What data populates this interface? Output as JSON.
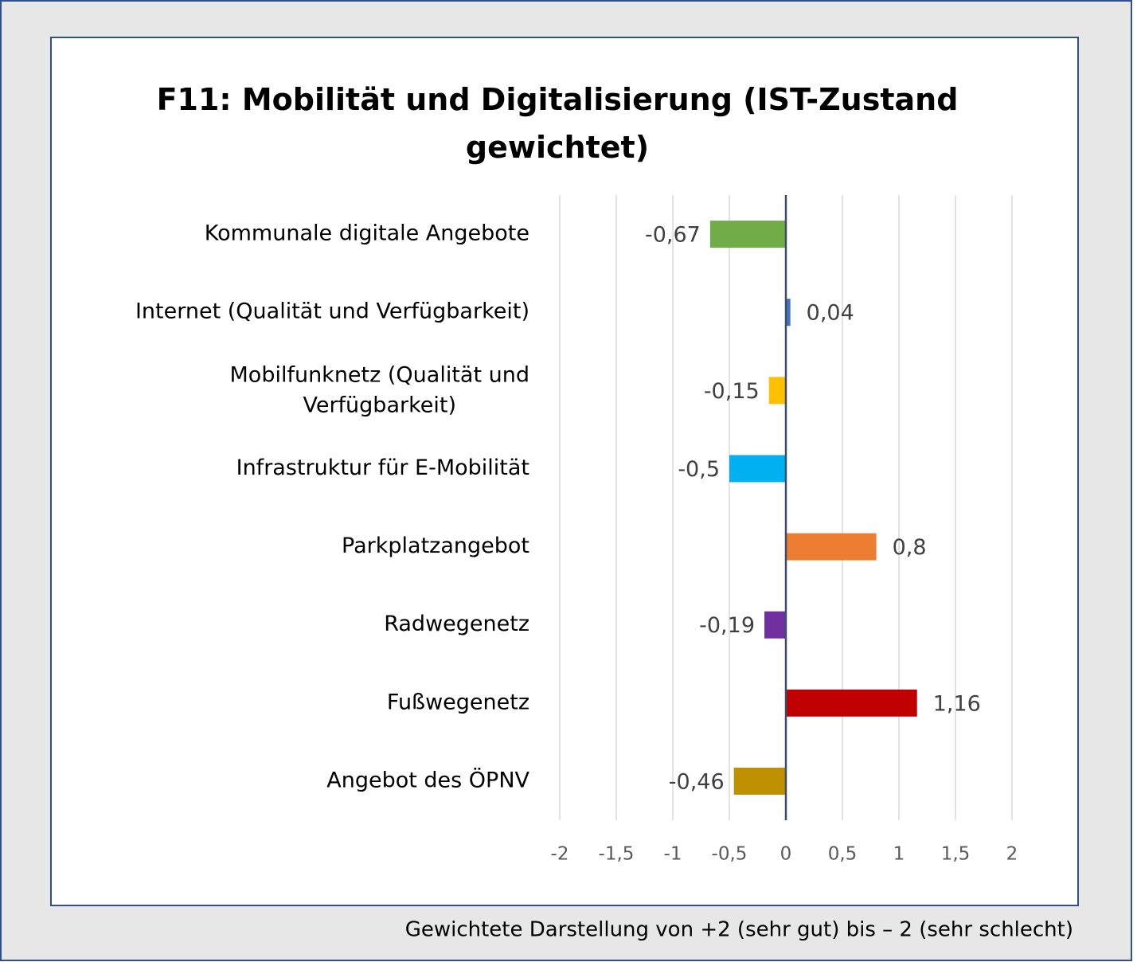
{
  "chart_data": {
    "type": "bar",
    "orientation": "horizontal",
    "title": "F11: Mobilität und Digitalisierung (IST-Zustand gewichtet)",
    "categories": [
      "Kommunale digitale Angebote",
      "Internet (Qualität und Verfügbarkeit)",
      "Mobilfunknetz (Qualität und Verfügbarkeit)",
      "Infrastruktur für E-Mobilität",
      "Parkplatzangebot",
      "Radwegenetz",
      "Fußwegenetz",
      "Angebot des ÖPNV"
    ],
    "values": [
      -0.67,
      0.04,
      -0.15,
      -0.5,
      0.8,
      -0.19,
      1.16,
      -0.46
    ],
    "value_labels": [
      "-0,67",
      "0,04",
      "-0,15",
      "-0,5",
      "0,8",
      "-0,19",
      "1,16",
      "-0,46"
    ],
    "colors": [
      "#70ad47",
      "#4472c4",
      "#ffc000",
      "#00b0f0",
      "#ed7d31",
      "#7030a0",
      "#c00000",
      "#bf9000"
    ],
    "xlim": [
      -2,
      2
    ],
    "xticks": [
      -2,
      {
        "value": -1.5,
        "label": "-1,5"
      },
      -1,
      {
        "value": -0.5,
        "label": "-0,5"
      },
      0,
      {
        "value": 0.5,
        "label": "0,5"
      },
      1,
      {
        "value": 1.5,
        "label": "1,5"
      },
      2
    ],
    "grid": true,
    "footnote": "Gewichtete Darstellung von +2 (sehr gut) bis – 2  (sehr schlecht)"
  }
}
